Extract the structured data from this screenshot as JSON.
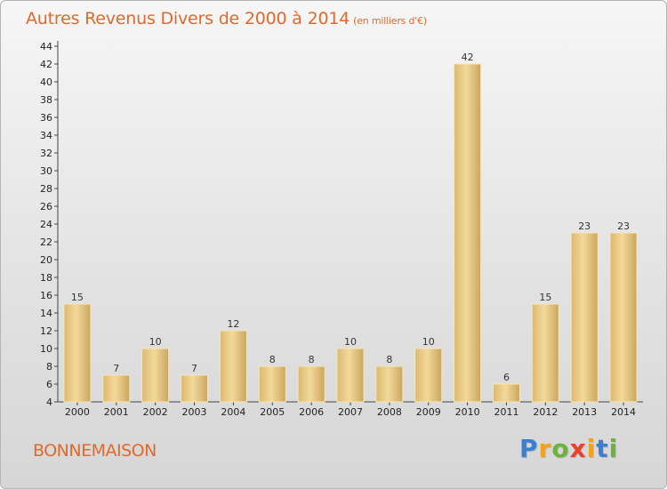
{
  "title": "Autres Revenus Divers de 2000 à 2014",
  "unit": "(en milliers d'€)",
  "location": "BONNEMAISON",
  "logo": {
    "letters": [
      "P",
      "r",
      "o",
      "x",
      "i",
      "t",
      "i"
    ],
    "colors": [
      "#3b7fd0",
      "#f1a31e",
      "#6bb33a",
      "#e8412c",
      "#f1a31e",
      "#3b7fd0",
      "#6bb33a"
    ]
  },
  "chart_data": {
    "type": "bar",
    "categories": [
      "2000",
      "2001",
      "2002",
      "2003",
      "2004",
      "2005",
      "2006",
      "2007",
      "2008",
      "2009",
      "2010",
      "2011",
      "2012",
      "2013",
      "2014"
    ],
    "values": [
      15,
      7,
      10,
      7,
      12,
      8,
      8,
      10,
      8,
      10,
      42,
      6,
      15,
      23,
      23
    ],
    "ylim": [
      4,
      44
    ],
    "yticks": [
      4,
      6,
      8,
      10,
      12,
      14,
      16,
      18,
      20,
      22,
      24,
      26,
      28,
      30,
      32,
      34,
      36,
      38,
      40,
      42,
      44
    ],
    "grid": false,
    "bar_color": "#e8c985"
  }
}
